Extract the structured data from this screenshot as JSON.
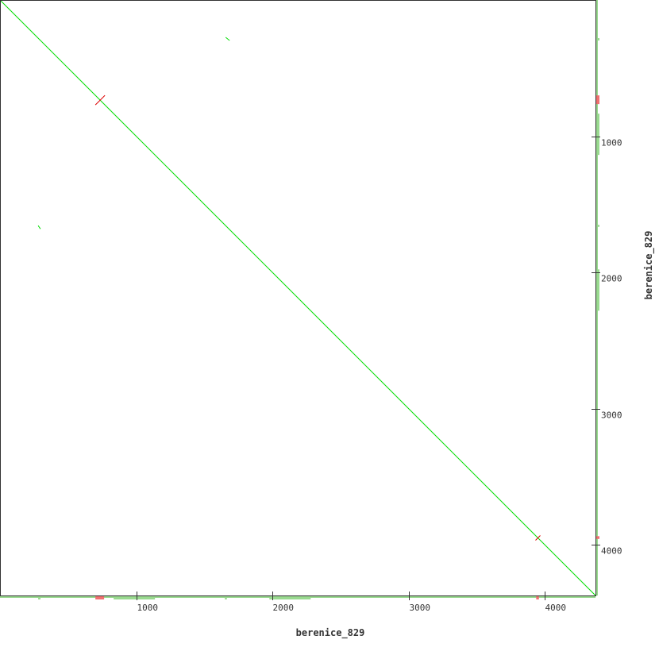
{
  "chart_data": {
    "type": "line",
    "subtype": "dot-plot",
    "xlabel": "berenice_829",
    "ylabel": "berenice_829",
    "xlim": [
      0,
      4370
    ],
    "ylim": [
      0,
      4370
    ],
    "y_direction": "down",
    "x_ticks": [
      1000,
      2000,
      3000,
      4000
    ],
    "y_ticks": [
      1000,
      2000,
      3000,
      4000
    ],
    "grid": false,
    "colors": {
      "forward": "#00dd00",
      "reverse": "#dd0000",
      "annot_forward": "#99d98f",
      "annot_reverse": "#f07070",
      "frame": "#333333"
    },
    "series": [
      {
        "orientation": "forward",
        "segments": [
          [
            [
              0,
              0
            ],
            [
              4370,
              4370
            ]
          ],
          [
            [
              1656,
              274
            ],
            [
              1685,
              297
            ]
          ],
          [
            [
              280,
              1656
            ],
            [
              297,
              1680
            ]
          ]
        ]
      },
      {
        "orientation": "reverse",
        "segments": [
          [
            [
              700,
              770
            ],
            [
              770,
              700
            ]
          ],
          [
            [
              3930,
              3965
            ],
            [
              3965,
              3930
            ]
          ]
        ]
      }
    ],
    "margin_annotations": [
      {
        "orientation": "forward",
        "range": [
          0,
          4370
        ],
        "kind": "thin"
      },
      {
        "orientation": "forward",
        "range": [
          834,
          1137
        ],
        "kind": "thick"
      },
      {
        "orientation": "forward",
        "range": [
          1977,
          2280
        ],
        "kind": "thick"
      },
      {
        "orientation": "forward",
        "range": [
          280,
          297
        ],
        "kind": "thick"
      },
      {
        "orientation": "forward",
        "range": [
          1650,
          1665
        ],
        "kind": "thick"
      },
      {
        "orientation": "reverse",
        "range": [
          700,
          764
        ],
        "kind": "thick"
      },
      {
        "orientation": "reverse",
        "range": [
          3935,
          3955
        ],
        "kind": "thick"
      }
    ]
  }
}
